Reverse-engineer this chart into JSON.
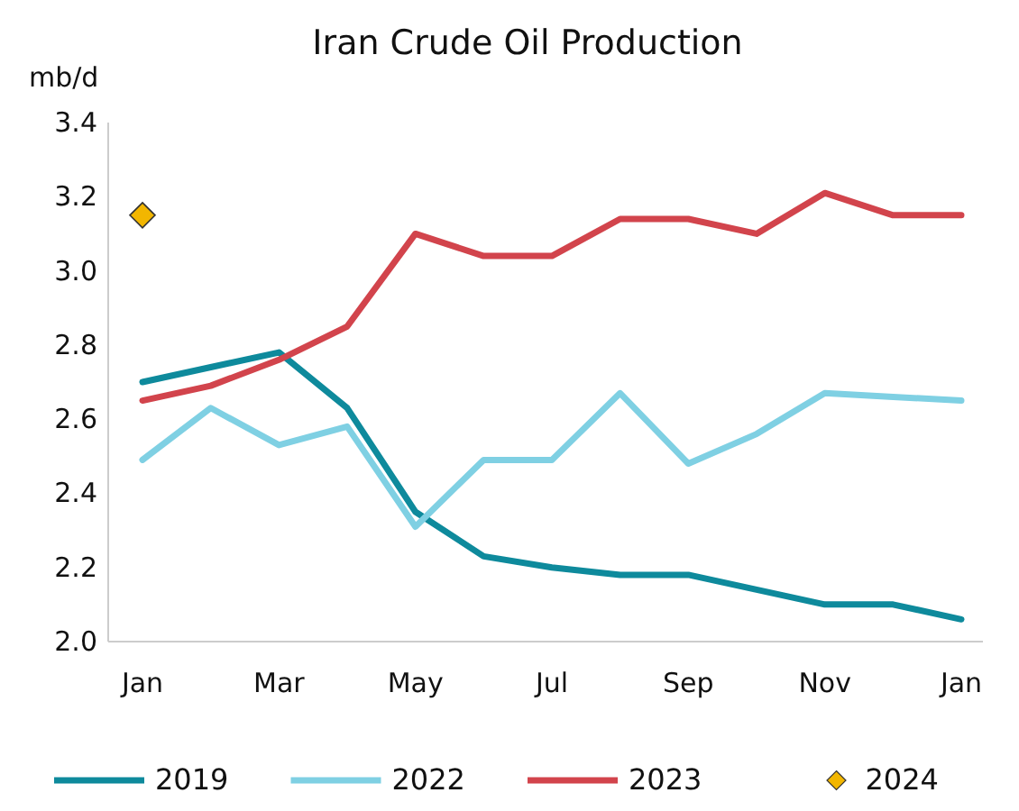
{
  "chart_data": {
    "type": "line",
    "title": "Iran Crude Oil Production",
    "ylabel": "mb/d",
    "categories": [
      "Jan",
      null,
      "Mar",
      null,
      "May",
      null,
      "Jul",
      null,
      "Sep",
      null,
      "Nov",
      null,
      "Jan"
    ],
    "series": [
      {
        "name": "2019",
        "color": "#0e8a9c",
        "values": [
          2.7,
          2.74,
          2.78,
          2.63,
          2.35,
          2.23,
          2.2,
          2.18,
          2.18,
          2.14,
          2.1,
          2.1,
          2.06
        ]
      },
      {
        "name": "2022",
        "color": "#7fd0e3",
        "values": [
          2.49,
          2.63,
          2.53,
          2.58,
          2.31,
          2.49,
          2.49,
          2.67,
          2.48,
          2.56,
          2.67,
          2.66,
          2.65
        ]
      },
      {
        "name": "2023",
        "color": "#d2444c",
        "values": [
          2.65,
          2.69,
          2.76,
          2.85,
          3.1,
          3.04,
          3.04,
          3.14,
          3.14,
          3.1,
          3.21,
          3.15,
          3.15
        ]
      },
      {
        "name": "2024",
        "type": "scatter",
        "marker": "diamond",
        "color": "#f2b600",
        "values": [
          3.15,
          null,
          null,
          null,
          null,
          null,
          null,
          null,
          null,
          null,
          null,
          null,
          null
        ]
      }
    ],
    "ylim": [
      2.0,
      3.4
    ],
    "yticks": [
      {
        "value": 2.0,
        "label": "2.0"
      },
      {
        "value": 2.2,
        "label": "2.2"
      },
      {
        "value": 2.4,
        "label": "2.4"
      },
      {
        "value": 2.6,
        "label": "2.6"
      },
      {
        "value": 2.8,
        "label": "2.8"
      },
      {
        "value": 3.0,
        "label": "3.0"
      },
      {
        "value": 3.2,
        "label": "3.2"
      },
      {
        "value": 3.4,
        "label": "3.4"
      }
    ],
    "grid": false,
    "legend": "bottom",
    "line_style": "solid"
  }
}
